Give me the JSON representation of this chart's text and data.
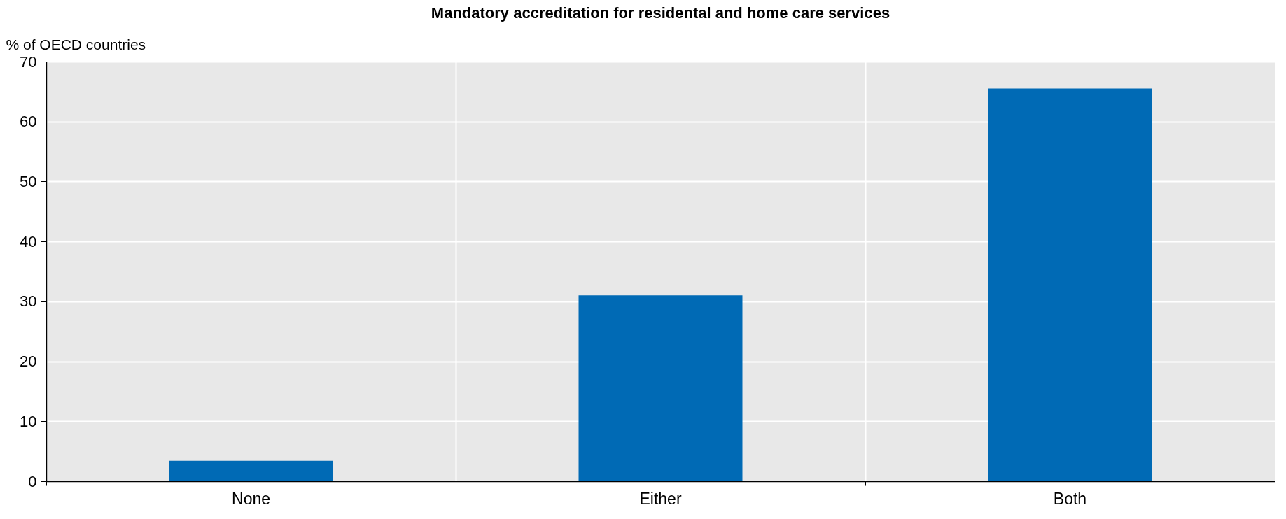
{
  "chart_data": {
    "type": "bar",
    "title": "Mandatory accreditation for residental and home care services",
    "ylabel": "% of OECD countries",
    "categories": [
      "None",
      "Either",
      "Both"
    ],
    "values": [
      3.4,
      31.0,
      65.5
    ],
    "color": "#006ab5",
    "ylim": [
      0,
      70
    ],
    "yticks": [
      0,
      10,
      20,
      30,
      40,
      50,
      60,
      70
    ],
    "grid": true
  }
}
